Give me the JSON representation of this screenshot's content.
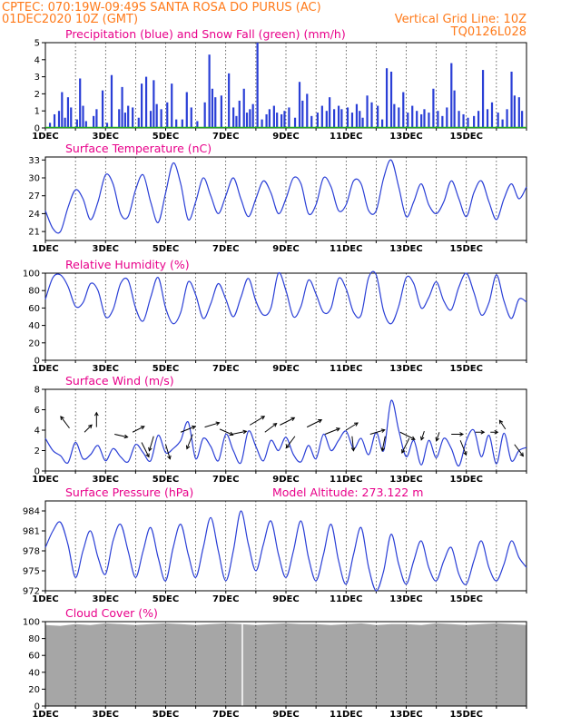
{
  "header": {
    "line1_left": "CPTEC:   070:19W-09:49S   SANTA ROSA DO PURUS (AC)",
    "line2_left": "01DEC2020 10Z (GMT)",
    "line2_right": "Vertical Grid Line: 10Z",
    "line3_right": "TQ0126L028"
  },
  "colors": {
    "header": "#ff7a1a",
    "title": "#e8008a",
    "line": "#2a3fd6",
    "snow": "#22aa22",
    "cloud": "#a6a6a6"
  },
  "x_ticks": [
    "1DEC",
    "3DEC",
    "5DEC",
    "7DEC",
    "9DEC",
    "11DEC",
    "13DEC",
    "15DEC"
  ],
  "chart_data": [
    {
      "type": "bar",
      "title": "Precipitation (blue) and Snow Fall (green) (mm/h)",
      "ylim": [
        0,
        5
      ],
      "yticks": [
        "0",
        "1",
        "2",
        "3",
        "4",
        "5"
      ],
      "series": [
        {
          "name": "Precipitation",
          "x_days": [
            0.15,
            0.3,
            0.45,
            0.55,
            0.65,
            0.75,
            0.85,
            1.05,
            1.15,
            1.25,
            1.35,
            1.6,
            1.7,
            1.9,
            2.05,
            2.2,
            2.45,
            2.55,
            2.65,
            2.75,
            2.9,
            3.1,
            3.2,
            3.35,
            3.5,
            3.6,
            3.7,
            3.85,
            4.05,
            4.2,
            4.35,
            4.55,
            4.7,
            4.85,
            5.05,
            5.3,
            5.45,
            5.55,
            5.65,
            5.85,
            6.1,
            6.25,
            6.35,
            6.45,
            6.6,
            6.7,
            6.8,
            6.9,
            7.05,
            7.2,
            7.35,
            7.45,
            7.6,
            7.7,
            7.85,
            7.95,
            8.1,
            8.3,
            8.45,
            8.55,
            8.7,
            8.85,
            9.05,
            9.2,
            9.35,
            9.45,
            9.6,
            9.75,
            9.85,
            10.05,
            10.2,
            10.35,
            10.45,
            10.55,
            10.7,
            10.85,
            11.05,
            11.2,
            11.35,
            11.5,
            11.6,
            11.75,
            11.9,
            12.05,
            12.2,
            12.35,
            12.5,
            12.6,
            12.75,
            12.9,
            13.05,
            13.2,
            13.35,
            13.5,
            13.6,
            13.75,
            13.9,
            14.05,
            14.25,
            14.4,
            14.55,
            14.7,
            14.85,
            15.05,
            15.2,
            15.35,
            15.5,
            15.6,
            15.75,
            15.85
          ],
          "values": [
            0.3,
            0.8,
            1.0,
            2.1,
            0.6,
            1.8,
            1.2,
            0.5,
            2.9,
            1.3,
            0.4,
            0.7,
            1.1,
            2.2,
            0.3,
            3.1,
            1.1,
            2.4,
            0.9,
            1.3,
            1.2,
            0.6,
            2.6,
            3.0,
            1.0,
            2.8,
            1.4,
            1.1,
            1.5,
            2.6,
            0.5,
            0.5,
            2.1,
            1.2,
            0.4,
            1.5,
            4.3,
            2.3,
            1.8,
            1.9,
            3.2,
            1.2,
            0.7,
            1.6,
            2.3,
            0.9,
            1.1,
            1.4,
            5.0,
            0.5,
            0.8,
            1.1,
            1.3,
            0.9,
            0.8,
            1.0,
            1.2,
            0.6,
            2.7,
            1.6,
            2.0,
            0.7,
            0.9,
            1.3,
            1.0,
            1.8,
            1.1,
            1.3,
            1.1,
            1.2,
            0.9,
            1.4,
            1.0,
            0.6,
            1.9,
            1.5,
            1.3,
            0.5,
            3.5,
            3.3,
            1.4,
            1.2,
            2.1,
            0.9,
            1.3,
            1.0,
            0.8,
            1.1,
            0.9,
            2.3,
            1.0,
            0.7,
            1.2,
            3.8,
            2.2,
            1.0,
            0.8,
            0.6,
            0.7,
            1.0,
            3.4,
            1.1,
            1.5,
            0.9,
            0.5,
            1.1,
            3.3,
            1.9,
            1.8,
            1.0
          ]
        },
        {
          "name": "Snow Fall",
          "x_days": [
            0,
            16
          ],
          "values": [
            0,
            0
          ]
        }
      ]
    },
    {
      "type": "line",
      "title": "Surface Temperature (nC)",
      "ylim": [
        19.5,
        33.5
      ],
      "yticks": [
        "21",
        "24",
        "27",
        "30",
        "33"
      ],
      "series": [
        {
          "name": "Temperature",
          "x": [
            0,
            0.25,
            0.5,
            0.75,
            1.0,
            1.25,
            1.5,
            1.75,
            2.0,
            2.25,
            2.5,
            2.75,
            3.0,
            3.25,
            3.5,
            3.75,
            4.0,
            4.25,
            4.5,
            4.75,
            5.0,
            5.25,
            5.5,
            5.75,
            6.0,
            6.25,
            6.5,
            6.75,
            7.0,
            7.25,
            7.5,
            7.75,
            8.0,
            8.25,
            8.5,
            8.75,
            9.0,
            9.25,
            9.5,
            9.75,
            10.0,
            10.25,
            10.5,
            10.75,
            11.0,
            11.25,
            11.5,
            11.75,
            12.0,
            12.25,
            12.5,
            12.75,
            13.0,
            13.25,
            13.5,
            13.75,
            14.0,
            14.25,
            14.5,
            14.75,
            15.0,
            15.25,
            15.5,
            15.75,
            16.0
          ],
          "values": [
            24.5,
            21.5,
            21.0,
            25.0,
            28.0,
            26.5,
            23.0,
            26.0,
            30.5,
            29.0,
            24.0,
            23.5,
            28.0,
            30.5,
            26.0,
            22.5,
            27.5,
            32.5,
            29.0,
            23.0,
            26.0,
            30.0,
            27.0,
            24.0,
            27.0,
            30.0,
            26.5,
            23.5,
            26.5,
            29.5,
            27.5,
            24.0,
            26.5,
            30.0,
            29.0,
            24.0,
            25.5,
            30.0,
            28.5,
            24.5,
            25.5,
            29.5,
            29.0,
            24.5,
            24.5,
            30.0,
            33.0,
            28.5,
            23.5,
            26.0,
            29.0,
            25.5,
            24.0,
            26.0,
            29.5,
            26.5,
            23.5,
            27.5,
            29.5,
            26.0,
            23.0,
            26.5,
            29.0,
            26.5,
            28.5
          ]
        }
      ]
    },
    {
      "type": "line",
      "title": "Relative Humidity (%)",
      "ylim": [
        0,
        100
      ],
      "yticks": [
        "0",
        "20",
        "40",
        "60",
        "80",
        "100"
      ],
      "series": [
        {
          "name": "Relative Humidity",
          "x": [
            0,
            0.25,
            0.5,
            0.75,
            1.0,
            1.25,
            1.5,
            1.75,
            2.0,
            2.25,
            2.5,
            2.75,
            3.0,
            3.25,
            3.5,
            3.75,
            4.0,
            4.25,
            4.5,
            4.75,
            5.0,
            5.25,
            5.5,
            5.75,
            6.0,
            6.25,
            6.5,
            6.75,
            7.0,
            7.25,
            7.5,
            7.75,
            8.0,
            8.25,
            8.5,
            8.75,
            9.0,
            9.25,
            9.5,
            9.75,
            10.0,
            10.25,
            10.5,
            10.75,
            11.0,
            11.25,
            11.5,
            11.75,
            12.0,
            12.25,
            12.5,
            12.75,
            13.0,
            13.25,
            13.5,
            13.75,
            14.0,
            14.25,
            14.5,
            14.75,
            15.0,
            15.25,
            15.5,
            15.75,
            16.0
          ],
          "values": [
            70,
            95,
            98,
            85,
            62,
            66,
            88,
            80,
            50,
            58,
            88,
            92,
            60,
            45,
            72,
            95,
            60,
            42,
            55,
            90,
            75,
            48,
            65,
            88,
            70,
            50,
            72,
            94,
            68,
            52,
            60,
            100,
            80,
            50,
            62,
            92,
            76,
            55,
            60,
            94,
            82,
            55,
            52,
            95,
            98,
            56,
            42,
            62,
            95,
            88,
            60,
            72,
            90,
            68,
            58,
            84,
            100,
            78,
            52,
            66,
            98,
            68,
            48,
            70,
            67
          ]
        }
      ]
    },
    {
      "type": "line",
      "title": "Surface Wind (m/s)",
      "ylim": [
        0,
        8
      ],
      "yticks": [
        "0",
        "2",
        "4",
        "6",
        "8"
      ],
      "series": [
        {
          "name": "Wind Speed",
          "x": [
            0,
            0.25,
            0.5,
            0.75,
            1.0,
            1.25,
            1.5,
            1.75,
            2.0,
            2.25,
            2.5,
            2.75,
            3.0,
            3.25,
            3.5,
            3.75,
            4.0,
            4.25,
            4.5,
            4.75,
            5.0,
            5.25,
            5.5,
            5.75,
            6.0,
            6.25,
            6.5,
            6.75,
            7.0,
            7.25,
            7.5,
            7.75,
            8.0,
            8.25,
            8.5,
            8.75,
            9.0,
            9.25,
            9.5,
            9.75,
            10.0,
            10.25,
            10.5,
            10.75,
            11.0,
            11.25,
            11.5,
            11.75,
            12.0,
            12.25,
            12.5,
            12.75,
            13.0,
            13.25,
            13.5,
            13.75,
            14.0,
            14.25,
            14.5,
            14.75,
            15.0,
            15.25,
            15.5,
            15.75,
            16.0
          ],
          "values": [
            3.2,
            2.0,
            1.5,
            0.8,
            2.8,
            1.2,
            1.6,
            2.5,
            1.0,
            2.2,
            1.4,
            0.9,
            2.6,
            1.8,
            1.0,
            3.5,
            1.8,
            2.2,
            3.0,
            4.8,
            1.2,
            3.2,
            2.4,
            1.0,
            3.6,
            2.0,
            0.8,
            3.9,
            2.4,
            1.0,
            3.0,
            2.0,
            3.3,
            1.6,
            0.9,
            2.5,
            1.2,
            3.6,
            2.0,
            3.0,
            3.9,
            2.2,
            3.2,
            1.6,
            3.8,
            2.0,
            6.9,
            4.0,
            1.4,
            3.0,
            0.6,
            3.0,
            1.3,
            3.2,
            2.2,
            0.5,
            3.0,
            4.0,
            1.4,
            3.5,
            0.7,
            3.7,
            1.0,
            2.0,
            2.3
          ]
        }
      ]
    },
    {
      "type": "line",
      "title": "Surface Pressure (hPa)",
      "annotation": "Model Altitude: 273.122 m",
      "ylim": [
        972,
        985.5
      ],
      "yticks": [
        "972",
        "975",
        "978",
        "981",
        "984"
      ],
      "series": [
        {
          "name": "Surface Pressure",
          "x": [
            0,
            0.25,
            0.5,
            0.75,
            1.0,
            1.25,
            1.5,
            1.75,
            2.0,
            2.25,
            2.5,
            2.75,
            3.0,
            3.25,
            3.5,
            3.75,
            4.0,
            4.25,
            4.5,
            4.75,
            5.0,
            5.25,
            5.5,
            5.75,
            6.0,
            6.25,
            6.5,
            6.75,
            7.0,
            7.25,
            7.5,
            7.75,
            8.0,
            8.25,
            8.5,
            8.75,
            9.0,
            9.25,
            9.5,
            9.75,
            10.0,
            10.25,
            10.5,
            10.75,
            11.0,
            11.25,
            11.5,
            11.75,
            12.0,
            12.25,
            12.5,
            12.75,
            13.0,
            13.25,
            13.5,
            13.75,
            14.0,
            14.25,
            14.5,
            14.75,
            15.0,
            15.25,
            15.5,
            15.75,
            16.0
          ],
          "values": [
            978.5,
            981.0,
            982.3,
            979.0,
            974.0,
            978.0,
            981.0,
            977.0,
            974.5,
            979.5,
            982.0,
            978.0,
            974.0,
            978.0,
            981.5,
            977.0,
            973.5,
            978.5,
            982.0,
            977.5,
            974.0,
            978.5,
            983.0,
            978.0,
            973.5,
            978.0,
            984.0,
            979.0,
            975.0,
            979.0,
            982.5,
            977.5,
            974.0,
            978.0,
            982.5,
            977.0,
            973.5,
            977.5,
            982.0,
            976.5,
            973.0,
            977.5,
            981.5,
            975.5,
            972.0,
            975.0,
            980.5,
            976.0,
            973.0,
            976.5,
            979.5,
            975.5,
            973.5,
            976.5,
            978.5,
            974.5,
            973.0,
            976.5,
            979.5,
            975.5,
            973.5,
            976.0,
            979.5,
            977.0,
            975.5
          ]
        }
      ]
    },
    {
      "type": "area",
      "title": "Cloud Cover (%)",
      "ylim": [
        0,
        100
      ],
      "yticks": [
        "0",
        "20",
        "40",
        "60",
        "80",
        "100"
      ],
      "series": [
        {
          "name": "Cloud Cover",
          "x": [
            0,
            0.5,
            1.0,
            1.5,
            2.0,
            2.5,
            3.0,
            3.5,
            4.0,
            4.5,
            5.0,
            5.5,
            6.0,
            6.5,
            7.0,
            7.5,
            8.0,
            8.5,
            9.0,
            9.5,
            10.0,
            10.5,
            11.0,
            11.5,
            12.0,
            12.5,
            13.0,
            13.5,
            14.0,
            14.5,
            15.0,
            15.5,
            16.0
          ],
          "values": [
            96,
            95,
            97,
            96,
            98,
            97,
            96,
            97,
            98,
            97,
            96,
            97,
            98,
            97,
            96,
            97,
            98,
            97,
            97,
            96,
            97,
            98,
            96,
            97,
            97,
            96,
            98,
            97,
            96,
            97,
            98,
            97,
            96
          ]
        }
      ]
    }
  ]
}
